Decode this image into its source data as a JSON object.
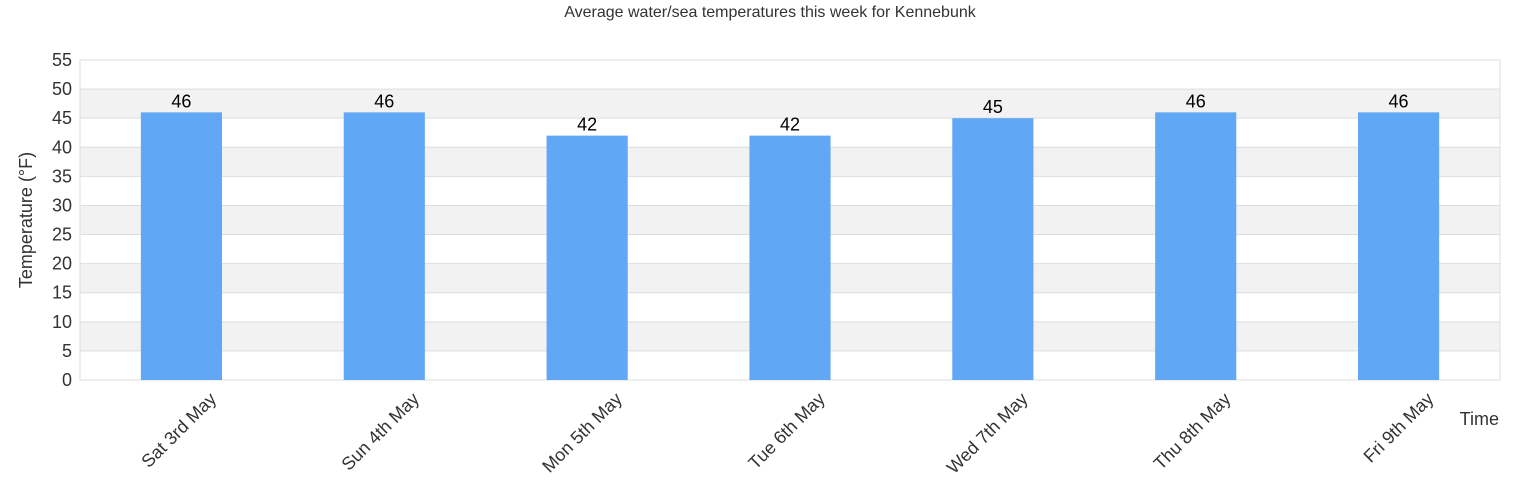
{
  "chart_data": {
    "type": "bar",
    "title": "Average water/sea temperatures this week for Kennebunk",
    "xlabel": "Time",
    "ylabel": "Temperature (°F)",
    "categories": [
      "Sat 3rd May",
      "Sun 4th May",
      "Mon 5th May",
      "Tue 6th May",
      "Wed 7th May",
      "Thu 8th May",
      "Fri 9th May"
    ],
    "values": [
      46,
      46,
      42,
      42,
      45,
      46,
      46
    ],
    "ylim": [
      0,
      55
    ],
    "yticks": [
      0,
      5,
      10,
      15,
      20,
      25,
      30,
      35,
      40,
      45,
      50,
      55
    ],
    "grid": true,
    "legend": "none",
    "colors": {
      "bar": "#60a7f5",
      "band": "#f2f2f2",
      "grid": "#dddddd",
      "axis_text": "#333333",
      "data_label": "#000000"
    }
  }
}
